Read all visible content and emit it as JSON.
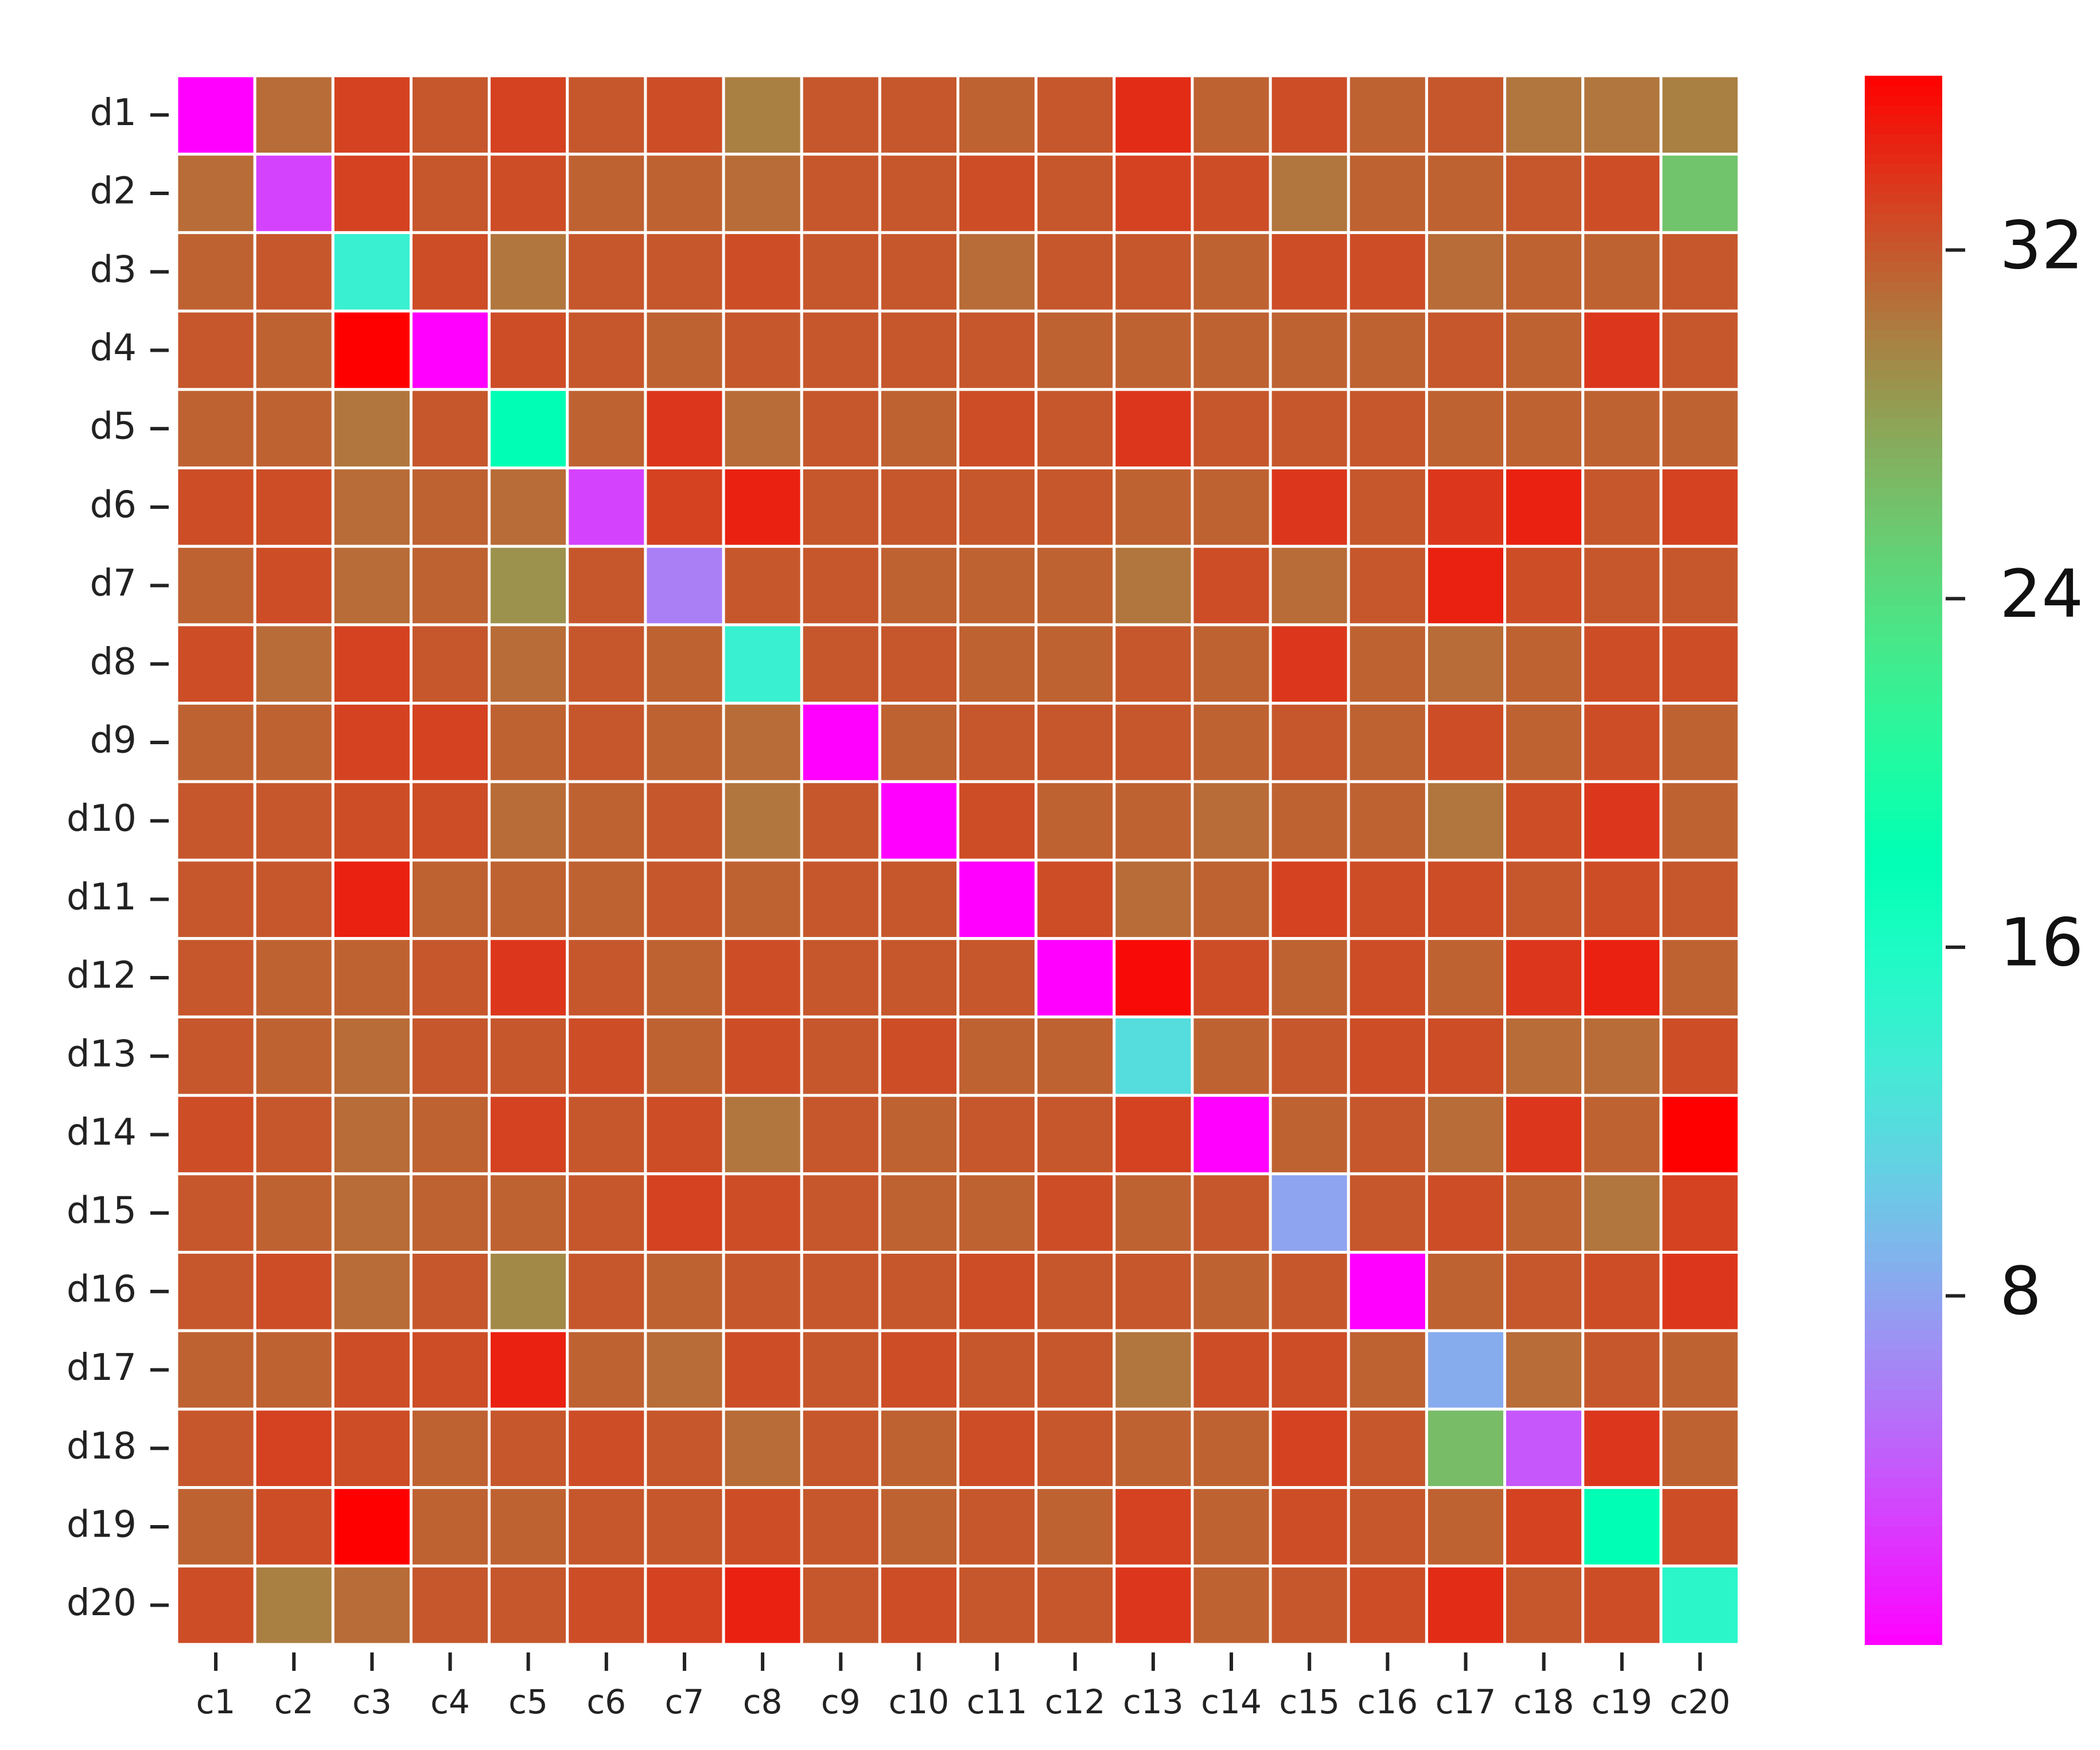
{
  "chart_data": {
    "type": "heatmap",
    "title": "",
    "xlabel": "",
    "ylabel": "",
    "rows": [
      "d1",
      "d2",
      "d3",
      "d4",
      "d5",
      "d6",
      "d7",
      "d8",
      "d9",
      "d10",
      "d11",
      "d12",
      "d13",
      "d14",
      "d15",
      "d16",
      "d17",
      "d18",
      "d19",
      "d20"
    ],
    "columns": [
      "c1",
      "c2",
      "c3",
      "c4",
      "c5",
      "c6",
      "c7",
      "c8",
      "c9",
      "c10",
      "c11",
      "c12",
      "c13",
      "c14",
      "c15",
      "c16",
      "c17",
      "c18",
      "c19",
      "c20"
    ],
    "values": [
      [
        0,
        31,
        33,
        32,
        33,
        32,
        32.5,
        30,
        32,
        32,
        31.5,
        32,
        34,
        31.5,
        32.5,
        31.5,
        32,
        30.5,
        30.5,
        30
      ],
      [
        31,
        3,
        33,
        32,
        32.5,
        31.5,
        31.5,
        31,
        32,
        32,
        32.5,
        32,
        33,
        32.5,
        30.5,
        31.5,
        31.5,
        32,
        32.5,
        26
      ],
      [
        31.5,
        32,
        14,
        32.5,
        30.5,
        32,
        32,
        32.5,
        32,
        32,
        31,
        32,
        32,
        31.5,
        32.5,
        32.5,
        31,
        31.5,
        31.5,
        32
      ],
      [
        32,
        31.5,
        36,
        0,
        32.5,
        32,
        31.5,
        32,
        32,
        32,
        32,
        31.5,
        31.5,
        31.5,
        31.5,
        31.5,
        32,
        31.5,
        33.5,
        32
      ],
      [
        31.5,
        31.5,
        30.5,
        32,
        18,
        31.5,
        33.5,
        31,
        32,
        31.5,
        32.5,
        32,
        33.5,
        32,
        32,
        32,
        31.5,
        31.5,
        31.5,
        31.5
      ],
      [
        32.5,
        32.5,
        31,
        31.5,
        31,
        3,
        33,
        34.5,
        32,
        32,
        32,
        32,
        31.5,
        31.5,
        33.5,
        32,
        33.5,
        34.5,
        32,
        33
      ],
      [
        31.5,
        32.5,
        31,
        31.5,
        29,
        32,
        6,
        32,
        32,
        31.5,
        31.5,
        31.5,
        30.5,
        32.5,
        31,
        32,
        34.5,
        32.5,
        32,
        32
      ],
      [
        32.5,
        31,
        33,
        32,
        31,
        32,
        31.5,
        14,
        32,
        32,
        31.5,
        31.5,
        32,
        31.5,
        33.5,
        31.5,
        31,
        31.5,
        32.5,
        32.5
      ],
      [
        31.5,
        31.5,
        33,
        33,
        31.5,
        32,
        31.5,
        31,
        0,
        31.5,
        32,
        32,
        32,
        31.5,
        32,
        31.5,
        32.5,
        31.5,
        32.5,
        31.5
      ],
      [
        32,
        32,
        32.5,
        32.5,
        31,
        31.5,
        32,
        30.5,
        32,
        0,
        32.5,
        31.5,
        31.5,
        31,
        31.5,
        31.5,
        30.5,
        32.5,
        33.5,
        31.5
      ],
      [
        32,
        32,
        34.5,
        31.5,
        31.5,
        31.5,
        32,
        31.5,
        32,
        32,
        0,
        32.5,
        31,
        31.5,
        33,
        32.5,
        32.5,
        32,
        32.5,
        32
      ],
      [
        32,
        31.5,
        31.5,
        32,
        33.5,
        32,
        31.5,
        32.5,
        32,
        32,
        32,
        0,
        35.5,
        32.5,
        31.5,
        32.5,
        31.5,
        33.5,
        34.5,
        31.5
      ],
      [
        32,
        31.5,
        31,
        32,
        32,
        32.5,
        31.5,
        32.5,
        32,
        32.5,
        31.5,
        31.5,
        12,
        31.5,
        32,
        32.5,
        32.5,
        31,
        31,
        32.5
      ],
      [
        32.5,
        32,
        31,
        31.5,
        33,
        32,
        32.5,
        30.5,
        32,
        31.5,
        32,
        32,
        33,
        0,
        31.5,
        32,
        31,
        33.5,
        31.5,
        36
      ],
      [
        32,
        31.5,
        31,
        31.5,
        31.5,
        32,
        33,
        32.5,
        32,
        31.5,
        31.5,
        32.5,
        31.5,
        32,
        8,
        32,
        32.5,
        31.5,
        30.5,
        33
      ],
      [
        32,
        32.5,
        31,
        32,
        29.5,
        32,
        31.5,
        32,
        32,
        32,
        32.5,
        32,
        32,
        31.5,
        32,
        0,
        31.5,
        32,
        32.5,
        33.5
      ],
      [
        31.5,
        31.5,
        32.5,
        32.5,
        34.5,
        31.5,
        31,
        32.5,
        32,
        32.5,
        32,
        32,
        30.5,
        32.5,
        32.5,
        31.5,
        8.5,
        31,
        32,
        31.5
      ],
      [
        32,
        33,
        32.5,
        31.5,
        32,
        32.5,
        32,
        31,
        32,
        31.5,
        32.5,
        32,
        31.5,
        31.5,
        33,
        32,
        26.5,
        4,
        33.5,
        31.5
      ],
      [
        31.5,
        32.5,
        36,
        31.5,
        31.5,
        32,
        32,
        32.5,
        32,
        31.5,
        32,
        31.5,
        33,
        31.5,
        32.5,
        32,
        31.5,
        33,
        18,
        32.5
      ],
      [
        32.5,
        30,
        31,
        32,
        32,
        32.5,
        33,
        34.5,
        32,
        32.5,
        32,
        32,
        33.5,
        31.5,
        32,
        32.5,
        34,
        32,
        32.5,
        15
      ]
    ],
    "colorbar": {
      "colormap": "rainbow",
      "range": [
        0,
        36
      ],
      "ticks": [
        8,
        16,
        24,
        32
      ],
      "tick_labels": [
        "8",
        "16",
        "24",
        "32"
      ]
    },
    "grid": true,
    "legend": "colorbar-right"
  }
}
